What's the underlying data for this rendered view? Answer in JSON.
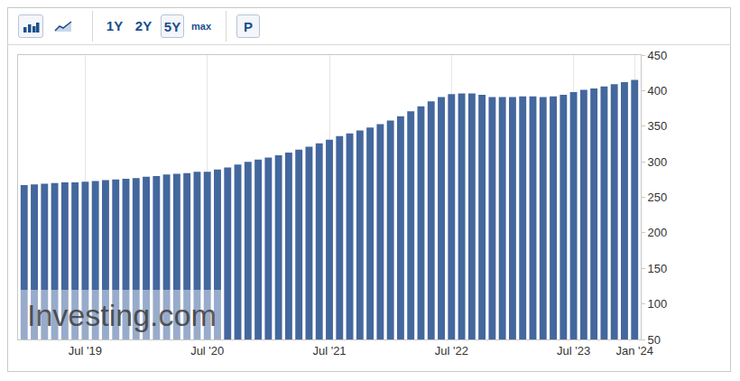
{
  "chart_data": {
    "type": "bar",
    "categories": [
      null,
      null,
      null,
      null,
      null,
      null,
      "Jul '19",
      null,
      null,
      null,
      null,
      null,
      null,
      null,
      null,
      null,
      null,
      null,
      "Jul '20",
      null,
      null,
      null,
      null,
      null,
      null,
      null,
      null,
      null,
      null,
      null,
      "Jul '21",
      null,
      null,
      null,
      null,
      null,
      null,
      null,
      null,
      null,
      null,
      null,
      "Jul '22",
      null,
      null,
      null,
      null,
      null,
      null,
      null,
      null,
      null,
      null,
      null,
      "Jul '23",
      null,
      null,
      null,
      null,
      null,
      "Jan '24"
    ],
    "values": [
      267,
      268,
      269,
      270,
      271,
      271,
      272,
      273,
      274,
      275,
      276,
      277,
      279,
      280,
      282,
      283,
      284,
      286,
      286,
      289,
      292,
      296,
      300,
      303,
      306,
      309,
      313,
      317,
      321,
      326,
      331,
      336,
      340,
      344,
      348,
      353,
      358,
      364,
      371,
      378,
      385,
      391,
      395,
      396,
      396,
      394,
      391,
      391,
      391,
      392,
      392,
      391,
      392,
      394,
      398,
      401,
      403,
      406,
      409,
      412,
      415
    ],
    "color": "#44679e",
    "ylim": [
      50,
      450
    ],
    "yticks": [
      50,
      100,
      150,
      200,
      250,
      300,
      350,
      400,
      450
    ],
    "grid": true
  },
  "toolbar": {
    "buttons": [
      "1Y",
      "2Y",
      "5Y",
      "max"
    ],
    "selected": "5Y",
    "extra": "P"
  },
  "watermark": "Investing.com"
}
